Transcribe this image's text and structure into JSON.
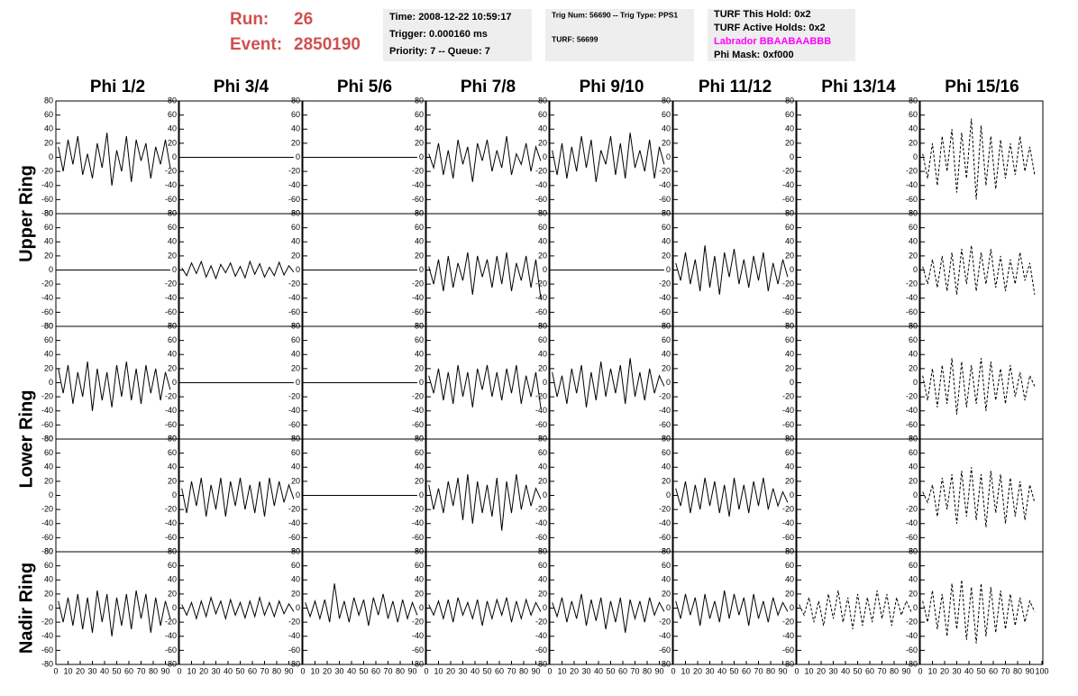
{
  "header": {
    "run_label": "Run:",
    "run": "26",
    "event_label": "Event:",
    "event": "2850190"
  },
  "info": [
    [
      "Time: 2008-12-22 10:59:17",
      "Trigger: 0.000160 ms",
      "Priority: 7 -- Queue: 7"
    ],
    [
      "Trig Num: 56690 -- Trig Type: PPS1",
      "TURF: 56699"
    ],
    [
      "TURF This Hold: 0x2",
      "TURF Active Holds: 0x2",
      "Labrador BBAABAABBB",
      "Phi Mask: 0xf000"
    ]
  ],
  "chart_data": {
    "type": "line",
    "columns": [
      "Phi 1/2",
      "Phi 3/4",
      "Phi 5/6",
      "Phi 7/8",
      "Phi 9/10",
      "Phi 11/12",
      "Phi 13/14",
      "Phi 15/16"
    ],
    "rows": [
      "Upper Ring",
      "Lower Ring",
      "Nadir Ring"
    ],
    "xlim": [
      0,
      100
    ],
    "ylim": [
      -80,
      80
    ],
    "xticks": [
      0,
      10,
      20,
      30,
      40,
      50,
      60,
      70,
      80,
      90,
      100
    ],
    "yticks": [
      -80,
      -60,
      -40,
      -20,
      0,
      20,
      40,
      60,
      80
    ],
    "x": [
      2,
      6,
      10,
      14,
      18,
      22,
      26,
      30,
      34,
      38,
      42,
      46,
      50,
      54,
      58,
      62,
      66,
      70,
      74,
      78,
      82,
      86,
      90,
      94
    ],
    "panels": [
      [
        {
          "values": [
            15,
            -20,
            25,
            -10,
            30,
            -25,
            5,
            -30,
            20,
            -15,
            35,
            -40,
            10,
            -20,
            30,
            -35,
            25,
            -5,
            20,
            -30,
            15,
            -10,
            25,
            -15
          ]
        },
        {
          "values": [
            0,
            0,
            0,
            0,
            0,
            0,
            0,
            0,
            0,
            0,
            0,
            0,
            0,
            0,
            0,
            0,
            0,
            0,
            0,
            0,
            0,
            0,
            0,
            0
          ]
        },
        {
          "values": [
            0,
            0,
            0,
            0,
            0,
            0,
            0,
            0,
            0,
            0,
            0,
            0,
            0,
            0,
            0,
            0,
            0,
            0,
            0,
            0,
            0,
            0,
            0,
            0
          ]
        },
        {
          "values": [
            5,
            -15,
            20,
            -25,
            10,
            -30,
            25,
            -10,
            15,
            -35,
            20,
            -5,
            25,
            -20,
            10,
            -15,
            30,
            -25,
            5,
            -10,
            20,
            -20,
            15,
            -5
          ]
        },
        {
          "values": [
            10,
            -25,
            20,
            -30,
            15,
            -20,
            30,
            -15,
            25,
            -35,
            10,
            -10,
            30,
            -25,
            20,
            -30,
            35,
            -15,
            10,
            -20,
            25,
            -30,
            15,
            -10
          ]
        },
        null,
        null,
        {
          "values": [
            5,
            -30,
            20,
            -40,
            30,
            -20,
            40,
            -50,
            35,
            -30,
            55,
            -60,
            45,
            -40,
            30,
            -45,
            25,
            -30,
            20,
            -25,
            30,
            -20,
            15,
            -25
          ],
          "dashed": true
        }
      ],
      [
        {
          "values": [
            0,
            0,
            0,
            0,
            0,
            0,
            0,
            0,
            0,
            0,
            0,
            0,
            0,
            0,
            0,
            0,
            0,
            0,
            0,
            0,
            0,
            0,
            0,
            0
          ]
        },
        {
          "values": [
            3,
            -8,
            10,
            -5,
            12,
            -10,
            6,
            -12,
            8,
            -4,
            10,
            -9,
            5,
            -11,
            12,
            -6,
            9,
            -10,
            4,
            -8,
            11,
            -7,
            6,
            -3
          ]
        },
        {
          "values": [
            0,
            0,
            0,
            0,
            0,
            0,
            0,
            0,
            0,
            0,
            0,
            0,
            0,
            0,
            0,
            0,
            0,
            0,
            0,
            0,
            0,
            0,
            0,
            0
          ]
        },
        {
          "values": [
            5,
            -20,
            15,
            -30,
            20,
            -25,
            10,
            -15,
            25,
            -35,
            20,
            -10,
            15,
            -25,
            20,
            -20,
            25,
            -30,
            10,
            -15,
            20,
            -25,
            15,
            -40
          ]
        },
        {
          "values": [
            0,
            0,
            0,
            0,
            0,
            0,
            0,
            0,
            0,
            0,
            0,
            0,
            0,
            0,
            0,
            0,
            0,
            0,
            0,
            0,
            0,
            0,
            0,
            0
          ]
        },
        {
          "values": [
            10,
            -15,
            25,
            -20,
            15,
            -30,
            35,
            -25,
            20,
            -35,
            25,
            -10,
            30,
            -20,
            15,
            -25,
            20,
            -15,
            25,
            -30,
            10,
            -20,
            15,
            -10
          ]
        },
        null,
        {
          "values": [
            5,
            -20,
            15,
            -25,
            20,
            -30,
            25,
            -35,
            30,
            -20,
            35,
            -30,
            25,
            -20,
            30,
            -25,
            20,
            -30,
            15,
            -20,
            25,
            -15,
            10,
            -35
          ],
          "dashed": true
        }
      ],
      [
        {
          "values": [
            20,
            -15,
            25,
            -30,
            15,
            -20,
            30,
            -40,
            20,
            -25,
            15,
            -35,
            25,
            -20,
            30,
            -25,
            20,
            -30,
            25,
            -15,
            20,
            -25,
            15,
            -10
          ]
        },
        {
          "values": [
            0,
            0,
            0,
            0,
            0,
            0,
            0,
            0,
            0,
            0,
            0,
            0,
            0,
            0,
            0,
            0,
            0,
            0,
            0,
            0,
            0,
            0,
            0,
            0
          ]
        },
        {
          "values": [
            0,
            0,
            0,
            0,
            0,
            0,
            0,
            0,
            0,
            0,
            0,
            0,
            0,
            0,
            0,
            0,
            0,
            0,
            0,
            0,
            0,
            0,
            0,
            0
          ]
        },
        {
          "values": [
            10,
            -15,
            20,
            -25,
            15,
            -30,
            25,
            -20,
            15,
            -35,
            20,
            -10,
            25,
            -20,
            15,
            -25,
            20,
            -15,
            25,
            -30,
            10,
            -20,
            15,
            -35
          ]
        },
        {
          "values": [
            15,
            -20,
            10,
            -30,
            20,
            -15,
            25,
            -35,
            15,
            -25,
            30,
            -20,
            20,
            -15,
            25,
            -30,
            35,
            -20,
            15,
            -25,
            20,
            -15,
            10,
            -5
          ]
        },
        null,
        null,
        {
          "values": [
            10,
            -25,
            20,
            -35,
            25,
            -30,
            35,
            -45,
            30,
            -35,
            25,
            -30,
            35,
            -40,
            30,
            -25,
            20,
            -30,
            25,
            -20,
            15,
            -25,
            10,
            -5
          ],
          "dashed": true
        }
      ],
      [
        null,
        {
          "values": [
            10,
            -25,
            20,
            -15,
            25,
            -30,
            15,
            -20,
            25,
            -30,
            20,
            -15,
            25,
            -20,
            15,
            -25,
            20,
            -30,
            25,
            -15,
            20,
            -10,
            15,
            -5
          ]
        },
        {
          "values": [
            0,
            0,
            0,
            0,
            0,
            0,
            0,
            0,
            0,
            0,
            0,
            0,
            0,
            0,
            0,
            0,
            0,
            0,
            0,
            0,
            0,
            0,
            0,
            0
          ]
        },
        {
          "values": [
            15,
            -20,
            10,
            -25,
            20,
            -15,
            25,
            -35,
            30,
            -40,
            20,
            -25,
            15,
            -30,
            25,
            -50,
            20,
            -25,
            30,
            -20,
            15,
            -15,
            10,
            -5
          ]
        },
        null,
        {
          "values": [
            10,
            -15,
            20,
            -25,
            15,
            -20,
            25,
            -15,
            20,
            -25,
            15,
            -30,
            25,
            -20,
            15,
            -25,
            20,
            -15,
            25,
            -20,
            10,
            -15,
            5,
            -10
          ]
        },
        null,
        {
          "values": [
            5,
            -10,
            15,
            -30,
            25,
            -20,
            30,
            -40,
            35,
            -30,
            40,
            -35,
            30,
            -45,
            35,
            -25,
            30,
            -40,
            25,
            -30,
            20,
            -35,
            15,
            -10
          ],
          "dashed": true
        }
      ],
      [
        {
          "values": [
            10,
            -20,
            15,
            -25,
            20,
            -30,
            15,
            -35,
            25,
            -20,
            20,
            -40,
            15,
            -25,
            20,
            -30,
            25,
            -15,
            20,
            -35,
            15,
            -25,
            10,
            -15
          ]
        },
        {
          "values": [
            5,
            -10,
            8,
            -15,
            10,
            -12,
            15,
            -8,
            10,
            -15,
            12,
            -10,
            8,
            -14,
            10,
            -12,
            15,
            -10,
            8,
            -12,
            10,
            -8,
            6,
            -5
          ]
        },
        {
          "values": [
            8,
            -12,
            10,
            -15,
            12,
            -20,
            35,
            -15,
            10,
            -20,
            15,
            -10,
            12,
            -25,
            15,
            -10,
            20,
            -15,
            10,
            -20,
            12,
            -15,
            8,
            -10
          ]
        },
        {
          "values": [
            5,
            -10,
            10,
            -15,
            12,
            -20,
            15,
            -10,
            8,
            -15,
            12,
            -25,
            10,
            -15,
            12,
            -10,
            15,
            -20,
            10,
            -15,
            12,
            -10,
            8,
            -5
          ]
        },
        {
          "values": [
            8,
            -12,
            15,
            -20,
            10,
            -15,
            20,
            -25,
            12,
            -18,
            15,
            -30,
            10,
            -20,
            15,
            -35,
            12,
            -15,
            10,
            -20,
            15,
            -10,
            8,
            -5
          ]
        },
        {
          "values": [
            10,
            -15,
            20,
            -10,
            15,
            -25,
            20,
            -15,
            10,
            -20,
            25,
            -15,
            20,
            -10,
            15,
            -25,
            20,
            -15,
            10,
            -20,
            15,
            -10,
            8,
            -5
          ]
        },
        {
          "values": [
            5,
            -10,
            15,
            -20,
            10,
            -25,
            20,
            -15,
            25,
            -20,
            15,
            -30,
            20,
            -25,
            15,
            -20,
            25,
            -15,
            20,
            -25,
            15,
            -10,
            10,
            -5
          ],
          "dashed": true
        },
        {
          "values": [
            10,
            -20,
            25,
            -30,
            20,
            -40,
            35,
            -30,
            40,
            -45,
            30,
            -50,
            35,
            -40,
            30,
            -35,
            25,
            -30,
            20,
            -25,
            15,
            -20,
            10,
            -5
          ],
          "dashed": true
        }
      ]
    ]
  }
}
